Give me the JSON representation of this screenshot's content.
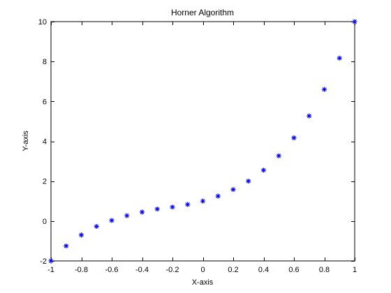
{
  "chart_data": {
    "type": "scatter",
    "title": "Horner Algorithm",
    "xlabel": "X-axis",
    "ylabel": "Y-axis",
    "xlim": [
      -1,
      1
    ],
    "ylim": [
      -2,
      10
    ],
    "xticks": [
      -1,
      -0.8,
      -0.6,
      -0.4,
      -0.2,
      0,
      0.2,
      0.4,
      0.6,
      0.8,
      1
    ],
    "xtick_labels": [
      "-1",
      "-0.8",
      "-0.6",
      "-0.4",
      "-0.2",
      "0",
      "0.2",
      "0.4",
      "0.6",
      "0.8",
      "1"
    ],
    "yticks": [
      -2,
      0,
      2,
      4,
      6,
      8,
      10
    ],
    "ytick_labels": [
      "-2",
      "0",
      "2",
      "4",
      "6",
      "8",
      "10"
    ],
    "grid": false,
    "marker": "*",
    "series": [
      {
        "x": [
          -1,
          -0.9,
          -0.8,
          -0.7,
          -0.6,
          -0.5,
          -0.4,
          -0.3,
          -0.2,
          -0.1,
          0,
          0.1,
          0.2,
          0.3,
          0.4,
          0.5,
          0.6,
          0.7,
          0.8,
          0.9,
          1
        ],
        "y": [
          -2,
          -1.25,
          -0.7,
          -0.27,
          0.03,
          0.27,
          0.45,
          0.6,
          0.7,
          0.83,
          1,
          1.25,
          1.58,
          2.0,
          2.55,
          3.27,
          4.17,
          5.27,
          6.6,
          8.17,
          10
        ]
      }
    ],
    "colors": {
      "marker": "#0000ff",
      "axes": "#000000",
      "background": "#ffffff"
    }
  }
}
